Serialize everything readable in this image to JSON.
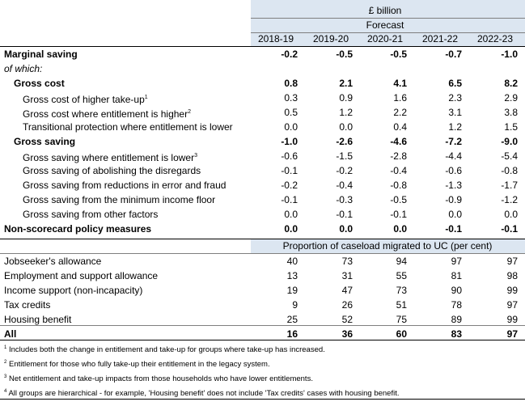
{
  "header": {
    "unit": "£ billion",
    "forecast": "Forecast",
    "years": [
      "2018-19",
      "2019-20",
      "2020-21",
      "2021-22",
      "2022-23"
    ]
  },
  "table": {
    "rows": [
      {
        "label": "Marginal saving",
        "values": [
          "-0.2",
          "-0.5",
          "-0.5",
          "-0.7",
          "-1.0"
        ]
      },
      {
        "label": "of which:"
      },
      {
        "label": "Gross cost",
        "values": [
          "0.8",
          "2.1",
          "4.1",
          "6.5",
          "8.2"
        ]
      },
      {
        "label": "Gross cost of higher take-up",
        "note": "1",
        "values": [
          "0.3",
          "0.9",
          "1.6",
          "2.3",
          "2.9"
        ]
      },
      {
        "label": "Gross cost where entitlement is higher",
        "note": "2",
        "values": [
          "0.5",
          "1.2",
          "2.2",
          "3.1",
          "3.8"
        ]
      },
      {
        "label": "Transitional protection where entitlement is lower",
        "values": [
          "0.0",
          "0.0",
          "0.4",
          "1.2",
          "1.5"
        ]
      },
      {
        "label": "Gross saving",
        "values": [
          "-1.0",
          "-2.6",
          "-4.6",
          "-7.2",
          "-9.0"
        ]
      },
      {
        "label": "Gross saving where entitlement is lower",
        "note": "3",
        "values": [
          "-0.6",
          "-1.5",
          "-2.8",
          "-4.4",
          "-5.4"
        ]
      },
      {
        "label": "Gross saving of abolishing the disregards",
        "values": [
          "-0.1",
          "-0.2",
          "-0.4",
          "-0.6",
          "-0.8"
        ]
      },
      {
        "label": "Gross saving from reductions in error and fraud",
        "values": [
          "-0.2",
          "-0.4",
          "-0.8",
          "-1.3",
          "-1.7"
        ]
      },
      {
        "label": "Gross saving from the minimum income floor",
        "values": [
          "-0.1",
          "-0.3",
          "-0.5",
          "-0.9",
          "-1.2"
        ]
      },
      {
        "label": "Gross saving from other factors",
        "values": [
          "0.0",
          "-0.1",
          "-0.1",
          "0.0",
          "0.0"
        ]
      },
      {
        "label": "Non-scorecard policy measures",
        "values": [
          "0.0",
          "0.0",
          "0.0",
          "-0.1",
          "-0.1"
        ]
      }
    ]
  },
  "proportion": {
    "title": "Proportion of caseload migrated to UC (per cent)",
    "rows": [
      {
        "label": "Jobseeker's allowance",
        "values": [
          "40",
          "73",
          "94",
          "97",
          "97"
        ]
      },
      {
        "label": "Employment and support allowance",
        "values": [
          "13",
          "31",
          "55",
          "81",
          "98"
        ]
      },
      {
        "label": "Income support (non-incapacity)",
        "values": [
          "19",
          "47",
          "73",
          "90",
          "99"
        ]
      },
      {
        "label": "Tax credits",
        "values": [
          "9",
          "26",
          "51",
          "78",
          "97"
        ]
      },
      {
        "label": "Housing benefit",
        "values": [
          "25",
          "52",
          "75",
          "89",
          "99"
        ]
      },
      {
        "label": "All",
        "values": [
          "16",
          "36",
          "60",
          "83",
          "97"
        ]
      }
    ]
  },
  "footnotes": [
    {
      "note": "1",
      "text": "Includes both the change in entitlement and take-up for groups where take-up has increased."
    },
    {
      "note": "2",
      "text": "Entitlement for those who fully take-up their entitlement in the legacy system."
    },
    {
      "note": "3",
      "text": "Net entitlement and take-up impacts from those households who have lower entitlements."
    },
    {
      "note": "4",
      "text": "All groups are hierarchical - for example, 'Housing benefit' does not include 'Tax credits' cases with housing benefit."
    }
  ]
}
